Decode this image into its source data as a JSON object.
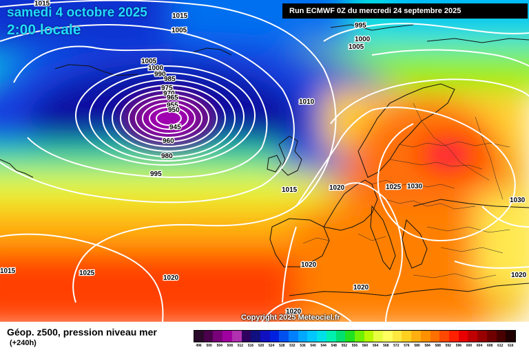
{
  "header": {
    "date": "samedi 4 octobre 2025",
    "time": "2:00 locale",
    "run": "Run ECMWF 0Z du mercredi 24 septembre 2025"
  },
  "footer": {
    "copyright": "Copyright 2025 Meteociel.fr",
    "title": "Géop. z500, pression niveau mer",
    "subtitle": "(+240h)"
  },
  "legend_colors": [
    "#2a0a2a",
    "#4a004a",
    "#7a007a",
    "#a000a0",
    "#b030b0",
    "#300060",
    "#101080",
    "#1010c0",
    "#0020e0",
    "#0050f0",
    "#0080ff",
    "#00a8ff",
    "#00c8ff",
    "#00e0e8",
    "#00f0b0",
    "#00e070",
    "#20e020",
    "#70f000",
    "#b8f800",
    "#e8ff40",
    "#ffff60",
    "#ffe840",
    "#ffd020",
    "#ffb010",
    "#ff9000",
    "#ff7000",
    "#ff4800",
    "#ff2000",
    "#e80000",
    "#c00000",
    "#980000",
    "#700000",
    "#480000",
    "#200000"
  ],
  "legend_labels": [
    "496",
    "500",
    "504",
    "508",
    "512",
    "516",
    "520",
    "524",
    "528",
    "532",
    "536",
    "540",
    "544",
    "548",
    "552",
    "556",
    "560",
    "564",
    "568",
    "572",
    "576",
    "580",
    "584",
    "588",
    "592",
    "596",
    "600",
    "604",
    "608",
    "612",
    "616"
  ],
  "pressure_labels": [
    {
      "text": "1015"
    },
    {
      "text": "1015"
    },
    {
      "text": "1005"
    },
    {
      "text": "995"
    },
    {
      "text": "1000"
    },
    {
      "text": "1005"
    },
    {
      "text": "1005"
    },
    {
      "text": "1000"
    },
    {
      "text": "990"
    },
    {
      "text": "985"
    },
    {
      "text": "975"
    },
    {
      "text": "970"
    },
    {
      "text": "965"
    },
    {
      "text": "955"
    },
    {
      "text": "950"
    },
    {
      "text": "945"
    },
    {
      "text": "960"
    },
    {
      "text": "980"
    },
    {
      "text": "995"
    },
    {
      "text": "1010"
    },
    {
      "text": "1015"
    },
    {
      "text": "1020"
    },
    {
      "text": "1025"
    },
    {
      "text": "1030"
    },
    {
      "text": "1030"
    },
    {
      "text": "1015"
    },
    {
      "text": "1025"
    },
    {
      "text": "1020"
    },
    {
      "text": "1020"
    },
    {
      "text": "1020"
    },
    {
      "text": "1020"
    },
    {
      "text": "1020"
    }
  ]
}
